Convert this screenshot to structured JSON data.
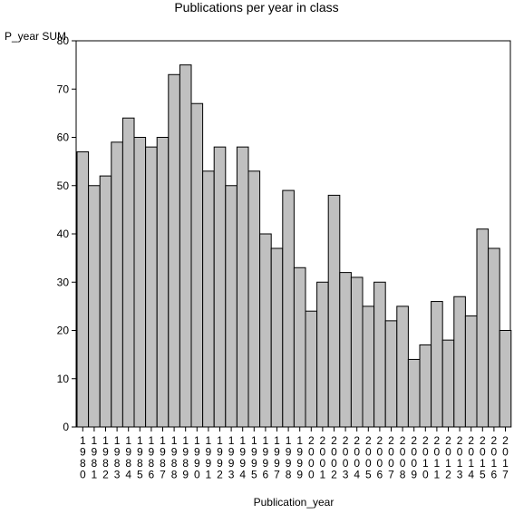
{
  "chart_data": {
    "type": "bar",
    "title": "Publications per year in class",
    "xlabel": "Publication_year",
    "ylabel": "P_year SUM",
    "ylim": [
      0,
      80
    ],
    "yticks": [
      0,
      10,
      20,
      30,
      40,
      50,
      60,
      70,
      80
    ],
    "grid": false,
    "categories": [
      "1980",
      "1981",
      "1982",
      "1983",
      "1984",
      "1985",
      "1986",
      "1987",
      "1988",
      "1989",
      "1990",
      "1991",
      "1992",
      "1993",
      "1994",
      "1995",
      "1996",
      "1997",
      "1998",
      "1999",
      "2000",
      "2001",
      "2002",
      "2003",
      "2004",
      "2005",
      "2006",
      "2007",
      "2008",
      "2009",
      "2010",
      "2011",
      "2012",
      "2013",
      "2014",
      "2015",
      "2016",
      "2017"
    ],
    "values": [
      57,
      50,
      52,
      59,
      64,
      60,
      58,
      60,
      73,
      75,
      67,
      53,
      58,
      50,
      58,
      53,
      40,
      37,
      49,
      33,
      24,
      30,
      48,
      32,
      31,
      25,
      30,
      22,
      25,
      14,
      17,
      26,
      18,
      27,
      23,
      41,
      37,
      20
    ],
    "bar_color": "#c0c0c0",
    "edge_color": "#000000"
  }
}
